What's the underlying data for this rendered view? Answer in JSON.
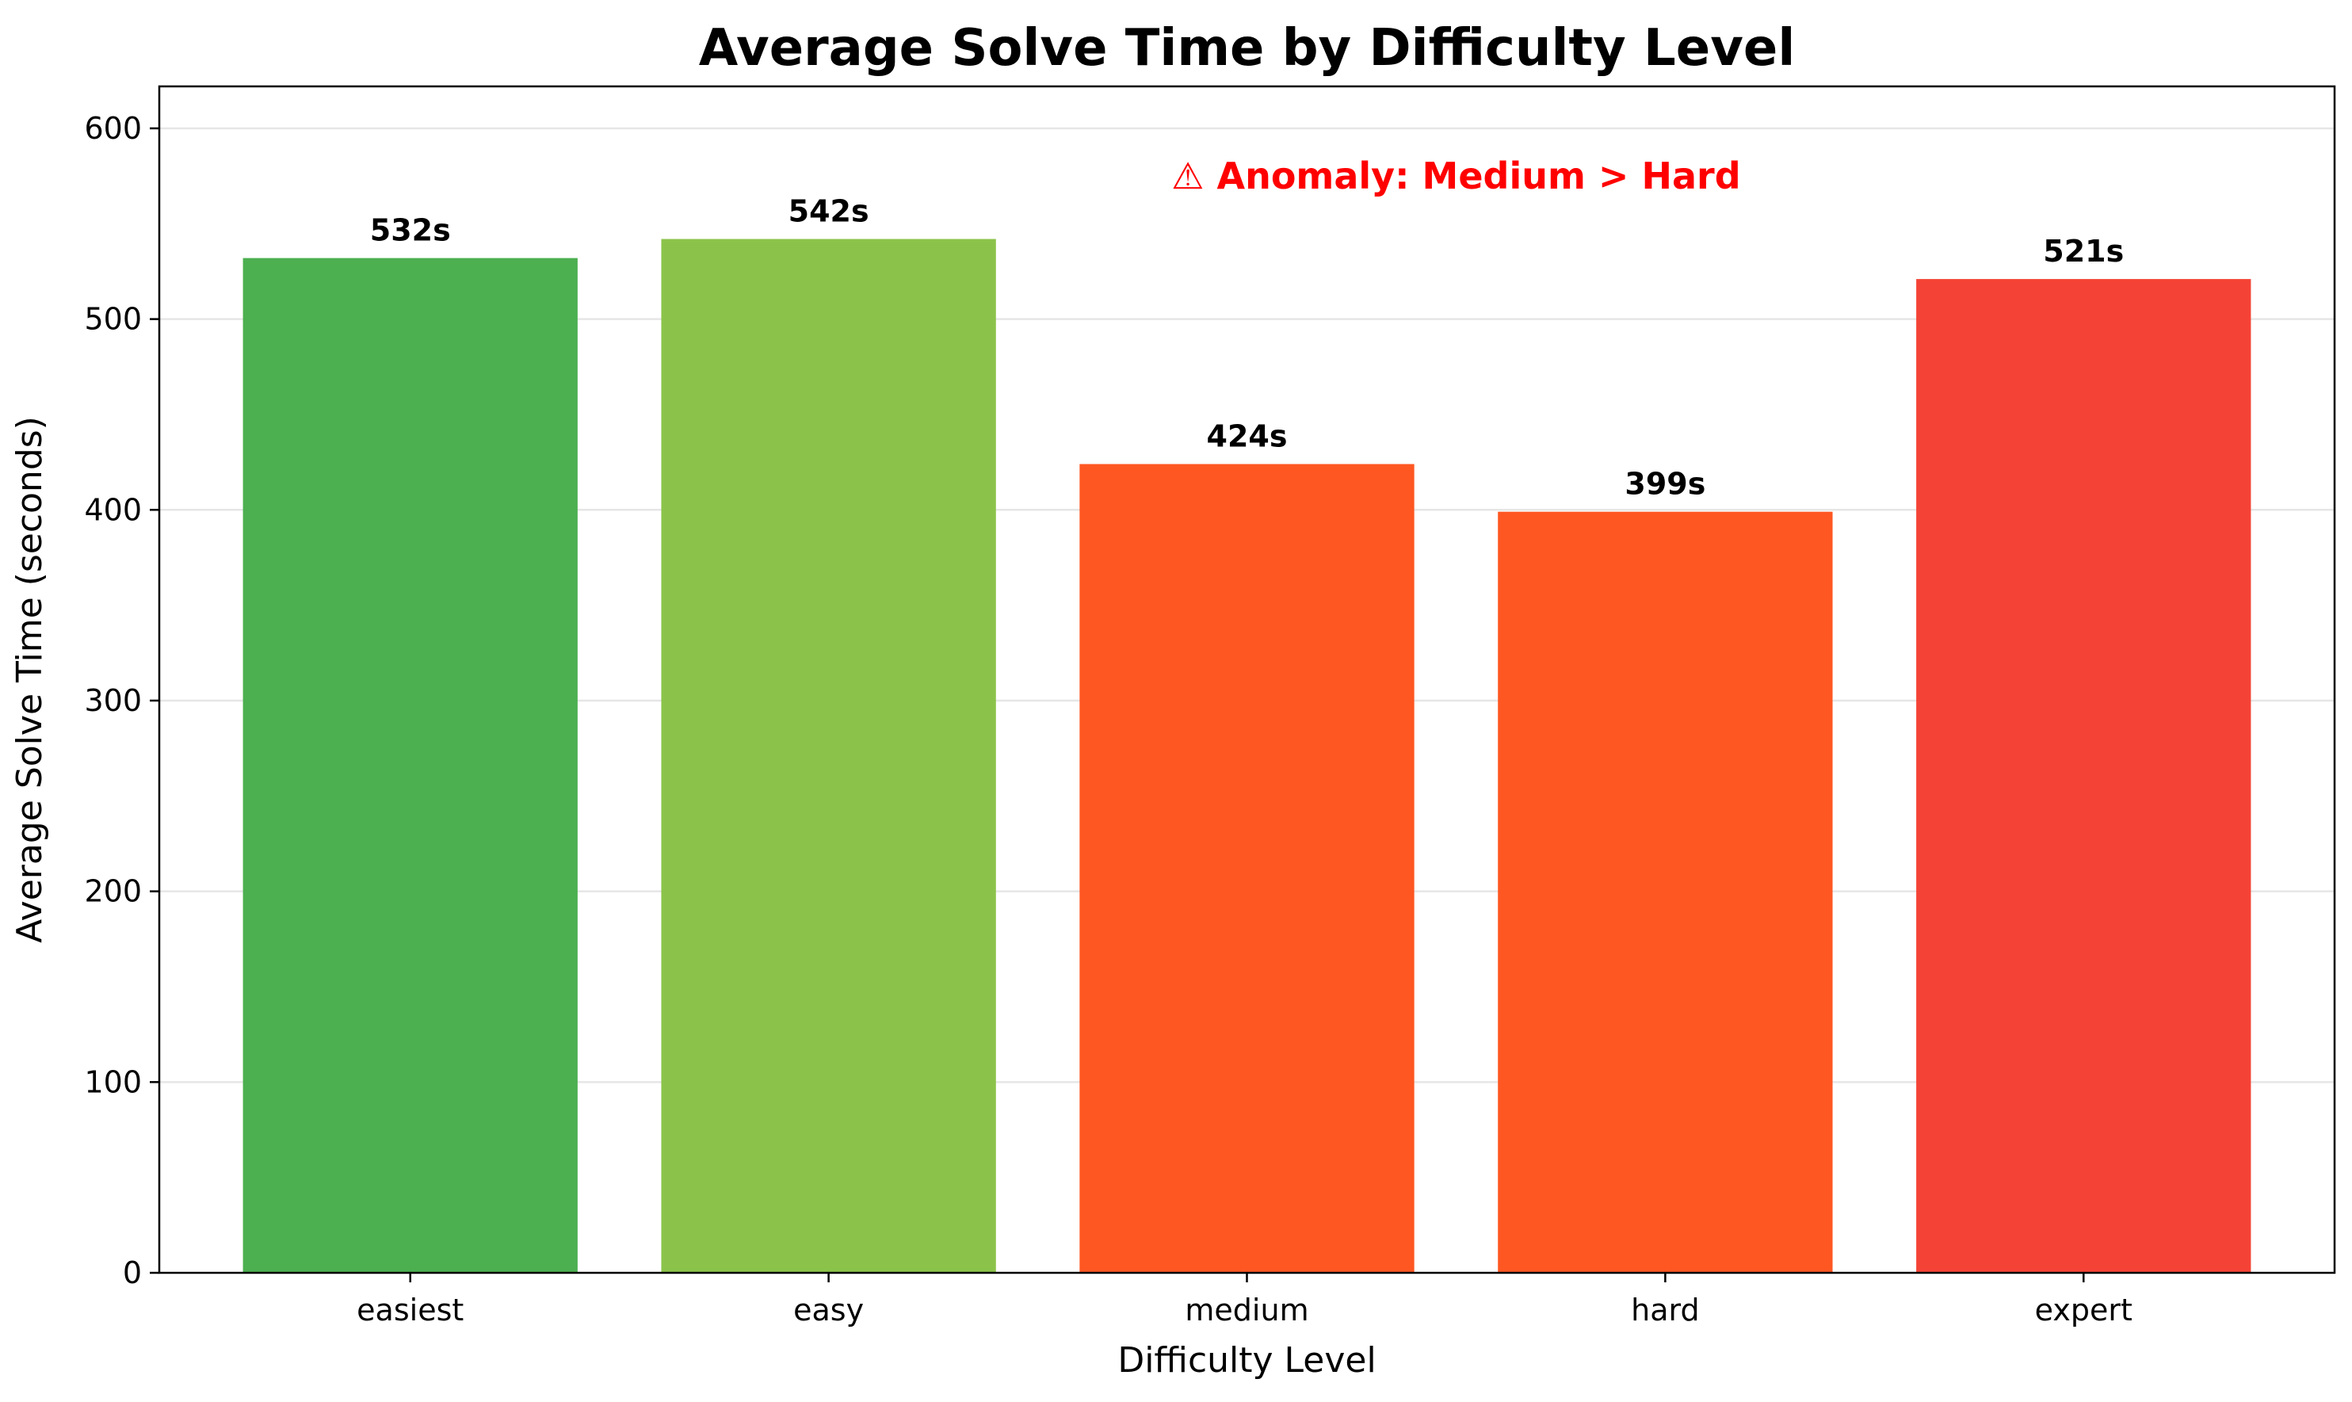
{
  "chart_data": {
    "type": "bar",
    "title": "Average Solve Time by Difficulty Level",
    "xlabel": "Difficulty Level",
    "ylabel": "Average Solve Time (seconds)",
    "categories": [
      "easiest",
      "easy",
      "medium",
      "hard",
      "expert"
    ],
    "values": [
      532,
      542,
      424,
      399,
      521
    ],
    "data_labels": [
      "532s",
      "542s",
      "424s",
      "399s",
      "521s"
    ],
    "colors": [
      "#4caf50",
      "#8bc34a",
      "#ff5722",
      "#ff5722",
      "#f44336"
    ],
    "ylim": [
      0,
      622
    ],
    "yticks": [
      0,
      100,
      200,
      300,
      400,
      500,
      600
    ],
    "grid": "y-only",
    "annotation": {
      "text": "⚠ Anomaly: Medium > Hard",
      "color": "#ff0000",
      "x_category_center": "hard",
      "x_offset_categories": -0.5,
      "y": 575
    }
  }
}
